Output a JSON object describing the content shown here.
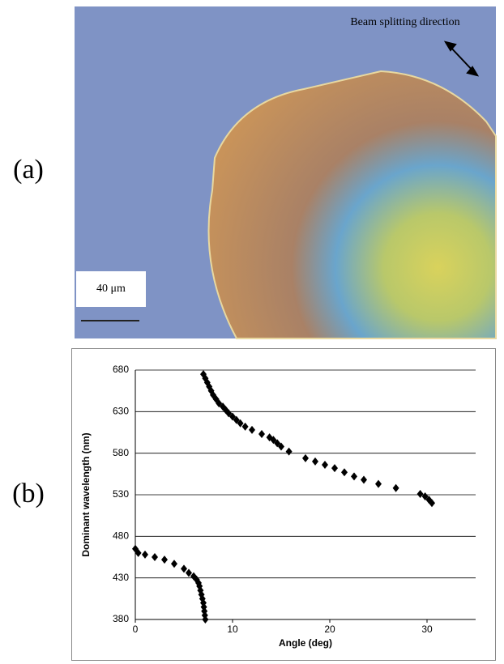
{
  "figure": {
    "panel_a_label": "(a)",
    "panel_b_label": "(b)",
    "annotation": "Beam splitting direction",
    "scale_bar": "40 μm"
  },
  "chart_data": {
    "type": "scatter",
    "xlabel": "Angle (deg)",
    "ylabel": "Dominant wavelength (nm)",
    "x": [
      7.0,
      7.2,
      7.4,
      7.6,
      7.8,
      8.0,
      8.3,
      8.6,
      9.0,
      9.3,
      9.6,
      10.0,
      10.4,
      10.8,
      11.3,
      12.0,
      13.0,
      13.8,
      14.2,
      14.6,
      15.0,
      15.8,
      17.5,
      18.5,
      19.5,
      20.5,
      21.5,
      22.5,
      23.5,
      25.0,
      26.8,
      29.3,
      29.8,
      30.2,
      30.5,
      0.0,
      0.3,
      1.0,
      2.0,
      3.0,
      4.0,
      5.0,
      5.5,
      6.0,
      6.3,
      6.5,
      6.6,
      6.7,
      6.8,
      6.9,
      7.0,
      7.05,
      7.1,
      7.15,
      7.2
    ],
    "values": [
      675,
      670,
      665,
      660,
      655,
      650,
      645,
      640,
      636,
      632,
      628,
      624,
      620,
      616,
      612,
      608,
      603,
      599,
      596,
      592,
      588,
      582,
      574,
      570,
      566,
      562,
      557,
      552,
      548,
      543,
      538,
      531,
      528,
      524,
      520,
      465,
      460,
      458,
      455,
      452,
      447,
      441,
      436,
      432,
      428,
      424,
      420,
      415,
      410,
      405,
      400,
      395,
      390,
      385,
      380
    ],
    "color": "#000000",
    "xlim": [
      0,
      35
    ],
    "xticks": [
      0,
      10,
      20,
      30
    ],
    "ylim": [
      380,
      680
    ],
    "yticks": [
      380,
      430,
      480,
      530,
      580,
      630,
      680
    ],
    "grid": true
  }
}
